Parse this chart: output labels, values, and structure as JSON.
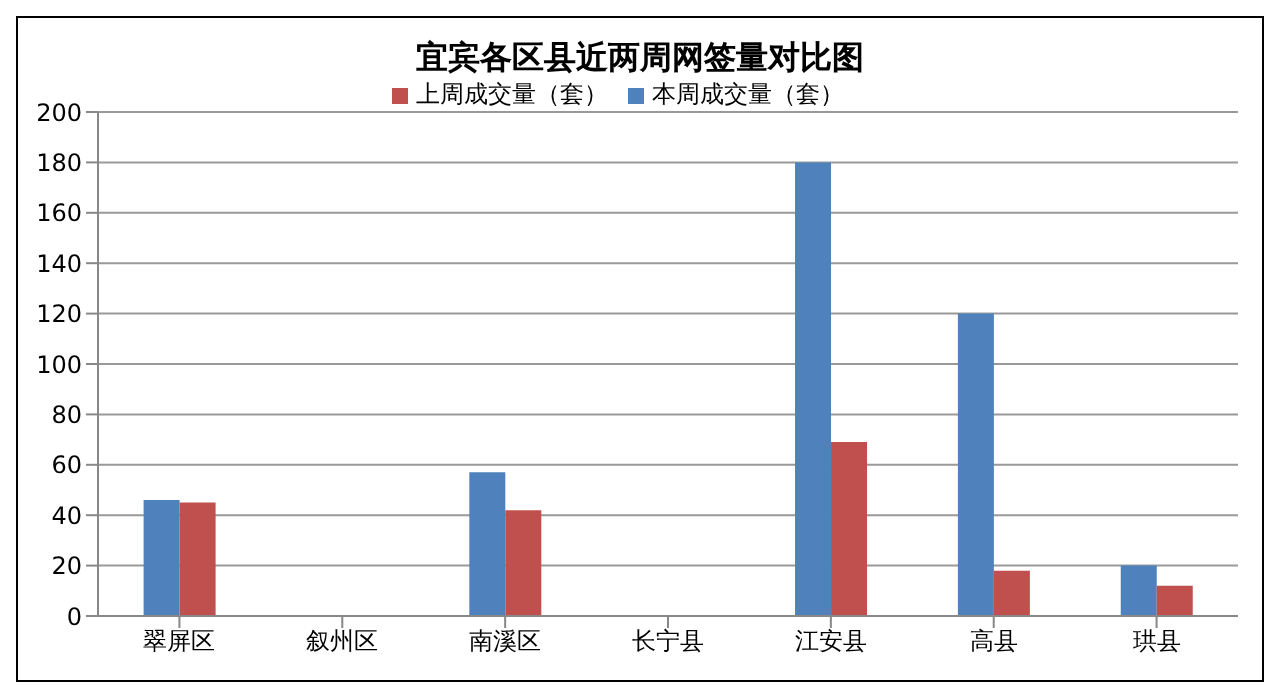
{
  "chart_data": {
    "type": "bar",
    "title": "宜宾各区县近两周网签量对比图",
    "categories": [
      "翠屏区",
      "叙州区",
      "南溪区",
      "长宁县",
      "江安县",
      "高县",
      "珙县"
    ],
    "series": [
      {
        "name": "本周成交量（套）",
        "color": "#4f81bd",
        "values": [
          46,
          0,
          57,
          0,
          180,
          120,
          20
        ]
      },
      {
        "name": "上周成交量（套）",
        "color": "#c0504d",
        "values": [
          45,
          0,
          42,
          0,
          69,
          18,
          12
        ]
      }
    ],
    "ylim": [
      0,
      200
    ],
    "yticks": [
      0,
      20,
      40,
      60,
      80,
      100,
      120,
      140,
      160,
      180,
      200
    ],
    "grid": "y",
    "legend": "top"
  }
}
